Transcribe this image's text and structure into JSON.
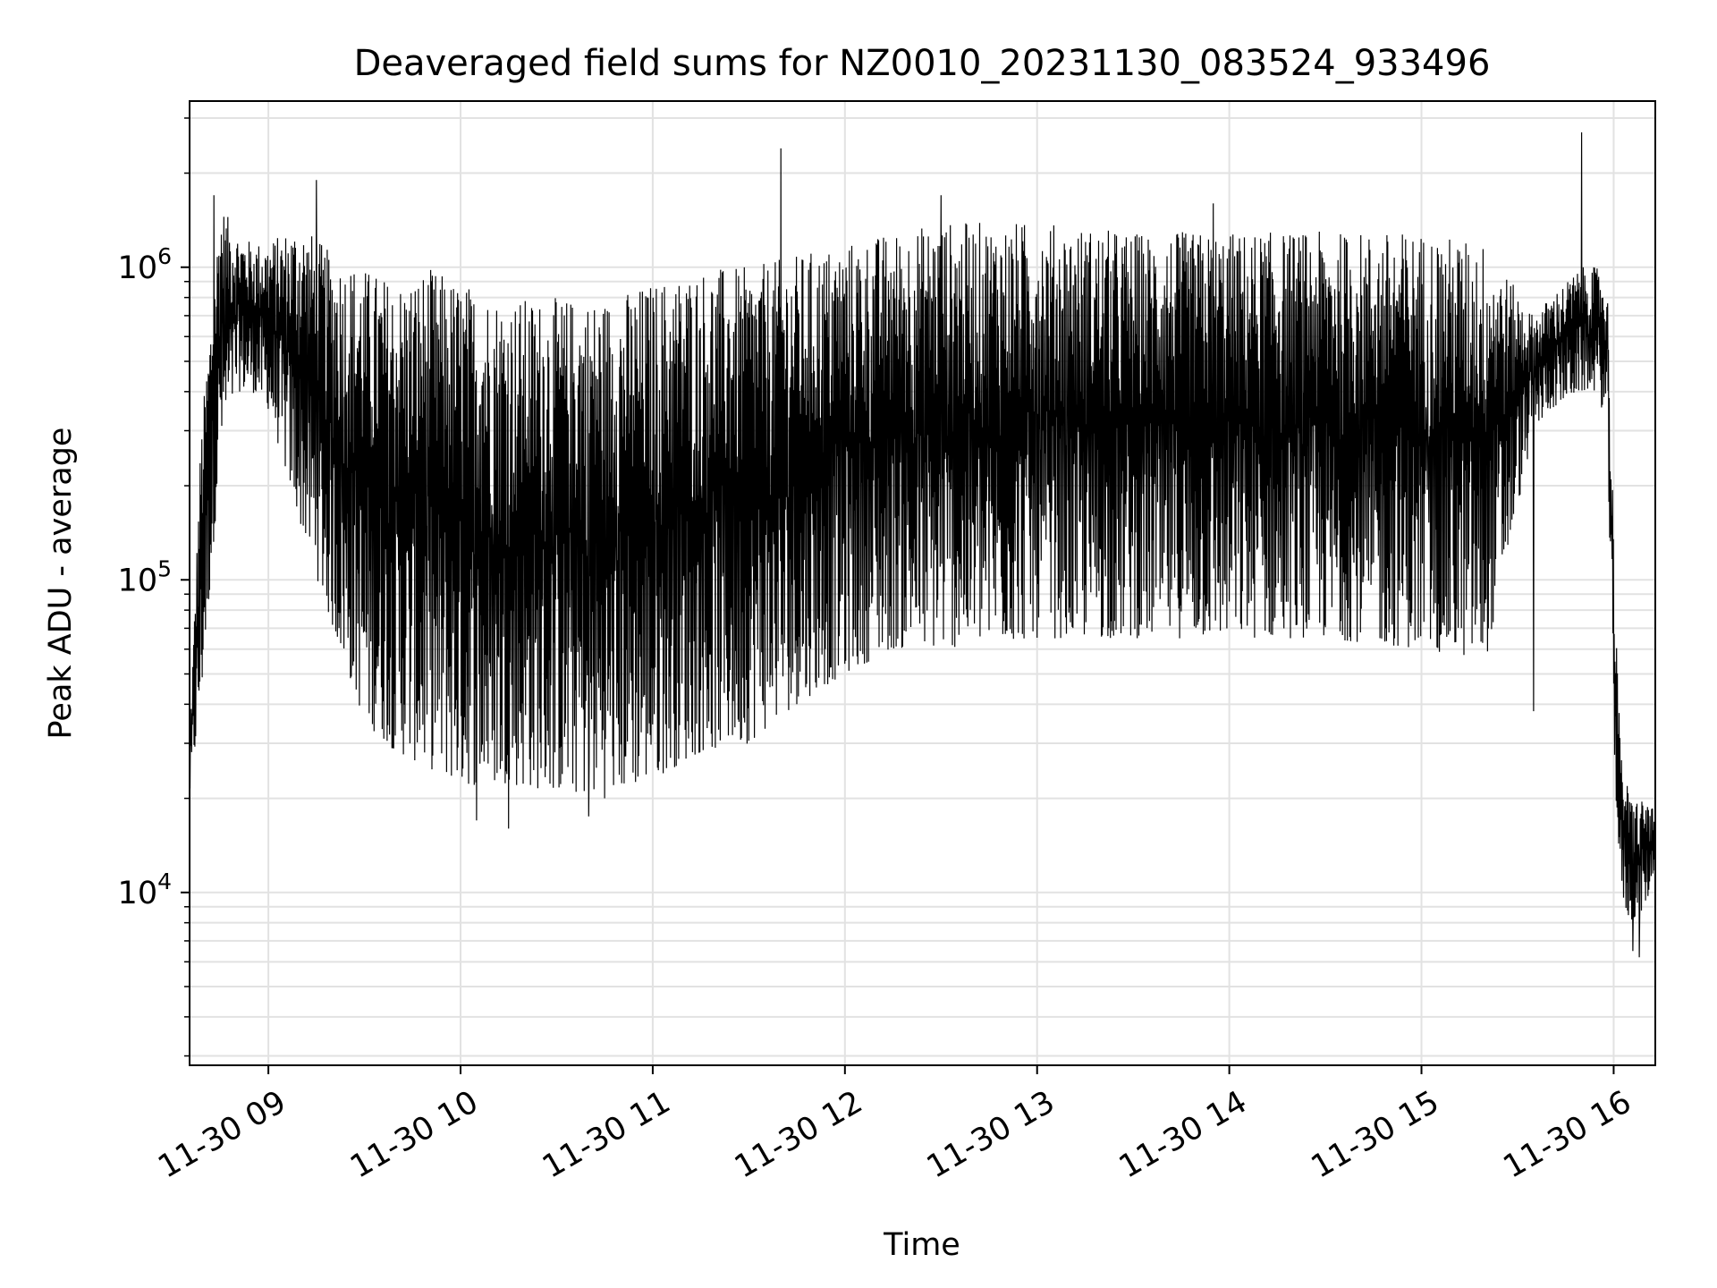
{
  "chart_data": {
    "type": "line",
    "title": "Deaveraged field sums for NZ0010_20231130_083524_933496",
    "xlabel": "Time",
    "ylabel": "Peak ADU - average",
    "y_scale": "log",
    "ylim": [
      2800,
      3400000
    ],
    "y_ticks": [
      {
        "value": 10000,
        "base": "10",
        "exp": "4"
      },
      {
        "value": 100000,
        "base": "10",
        "exp": "5"
      },
      {
        "value": 1000000,
        "base": "10",
        "exp": "6"
      }
    ],
    "xlim": [
      "2023-11-30T08:35:24",
      "2023-11-30T16:13:00"
    ],
    "x_ticks": [
      {
        "value": "2023-11-30T09:00:00",
        "label": "11-30 09"
      },
      {
        "value": "2023-11-30T10:00:00",
        "label": "11-30 10"
      },
      {
        "value": "2023-11-30T11:00:00",
        "label": "11-30 11"
      },
      {
        "value": "2023-11-30T12:00:00",
        "label": "11-30 12"
      },
      {
        "value": "2023-11-30T13:00:00",
        "label": "11-30 13"
      },
      {
        "value": "2023-11-30T14:00:00",
        "label": "11-30 14"
      },
      {
        "value": "2023-11-30T15:00:00",
        "label": "11-30 15"
      },
      {
        "value": "2023-11-30T16:00:00",
        "label": "11-30 16"
      }
    ],
    "grid": true,
    "line_color": "#000000",
    "envelope": {
      "note": "dense oscillating series; upper and lower envelopes estimated from the figure",
      "t": [
        "2023-11-30T08:35:24",
        "2023-11-30T08:39:00",
        "2023-11-30T08:45:00",
        "2023-11-30T08:50:00",
        "2023-11-30T08:55:00",
        "2023-11-30T09:00:00",
        "2023-11-30T09:10:00",
        "2023-11-30T09:20:00",
        "2023-11-30T09:30:00",
        "2023-11-30T09:40:00",
        "2023-11-30T09:50:00",
        "2023-11-30T10:00:00",
        "2023-11-30T10:15:00",
        "2023-11-30T10:30:00",
        "2023-11-30T10:45:00",
        "2023-11-30T11:00:00",
        "2023-11-30T11:15:00",
        "2023-11-30T11:30:00",
        "2023-11-30T11:45:00",
        "2023-11-30T12:00:00",
        "2023-11-30T12:15:00",
        "2023-11-30T12:30:00",
        "2023-11-30T13:00:00",
        "2023-11-30T13:30:00",
        "2023-11-30T14:00:00",
        "2023-11-30T14:30:00",
        "2023-11-30T15:00:00",
        "2023-11-30T15:20:00",
        "2023-11-30T15:35:00",
        "2023-11-30T15:40:00",
        "2023-11-30T15:50:00",
        "2023-11-30T15:55:00",
        "2023-11-30T15:58:00",
        "2023-11-30T16:00:00",
        "2023-11-30T16:02:00",
        "2023-11-30T16:05:00",
        "2023-11-30T16:10:00",
        "2023-11-30T16:13:00"
      ],
      "upper": [
        30000,
        300000,
        1600000,
        1300000,
        1200000,
        1200000,
        1400000,
        1100000,
        1000000,
        900000,
        1000000,
        900000,
        800000,
        800000,
        800000,
        900000,
        1000000,
        1000000,
        1100000,
        1200000,
        1300000,
        1400000,
        1400000,
        1300000,
        1300000,
        1300000,
        1300000,
        1200000,
        700000,
        800000,
        1000000,
        1000000,
        900000,
        150000,
        30000,
        20000,
        20000,
        18000
      ],
      "lower": [
        20000,
        40000,
        250000,
        400000,
        400000,
        350000,
        150000,
        70000,
        35000,
        28000,
        25000,
        22000,
        22000,
        21000,
        20000,
        23000,
        28000,
        30000,
        40000,
        50000,
        60000,
        60000,
        65000,
        65000,
        65000,
        65000,
        60000,
        55000,
        300000,
        350000,
        400000,
        400000,
        300000,
        30000,
        10000,
        8000,
        9000,
        12000
      ]
    },
    "spikes": [
      {
        "t": "2023-11-30T08:43:00",
        "y": 1700000
      },
      {
        "t": "2023-11-30T09:15:00",
        "y": 1900000
      },
      {
        "t": "2023-11-30T11:40:00",
        "y": 2400000
      },
      {
        "t": "2023-11-30T12:30:00",
        "y": 1700000
      },
      {
        "t": "2023-11-30T13:55:00",
        "y": 1600000
      },
      {
        "t": "2023-11-30T15:50:00",
        "y": 2700000
      },
      {
        "t": "2023-11-30T10:15:00",
        "y": 16000
      },
      {
        "t": "2023-11-30T10:05:00",
        "y": 17000
      },
      {
        "t": "2023-11-30T10:40:00",
        "y": 17500
      },
      {
        "t": "2023-11-30T15:35:00",
        "y": 38000
      },
      {
        "t": "2023-11-30T16:06:00",
        "y": 6500
      },
      {
        "t": "2023-11-30T16:08:00",
        "y": 6200
      }
    ]
  }
}
